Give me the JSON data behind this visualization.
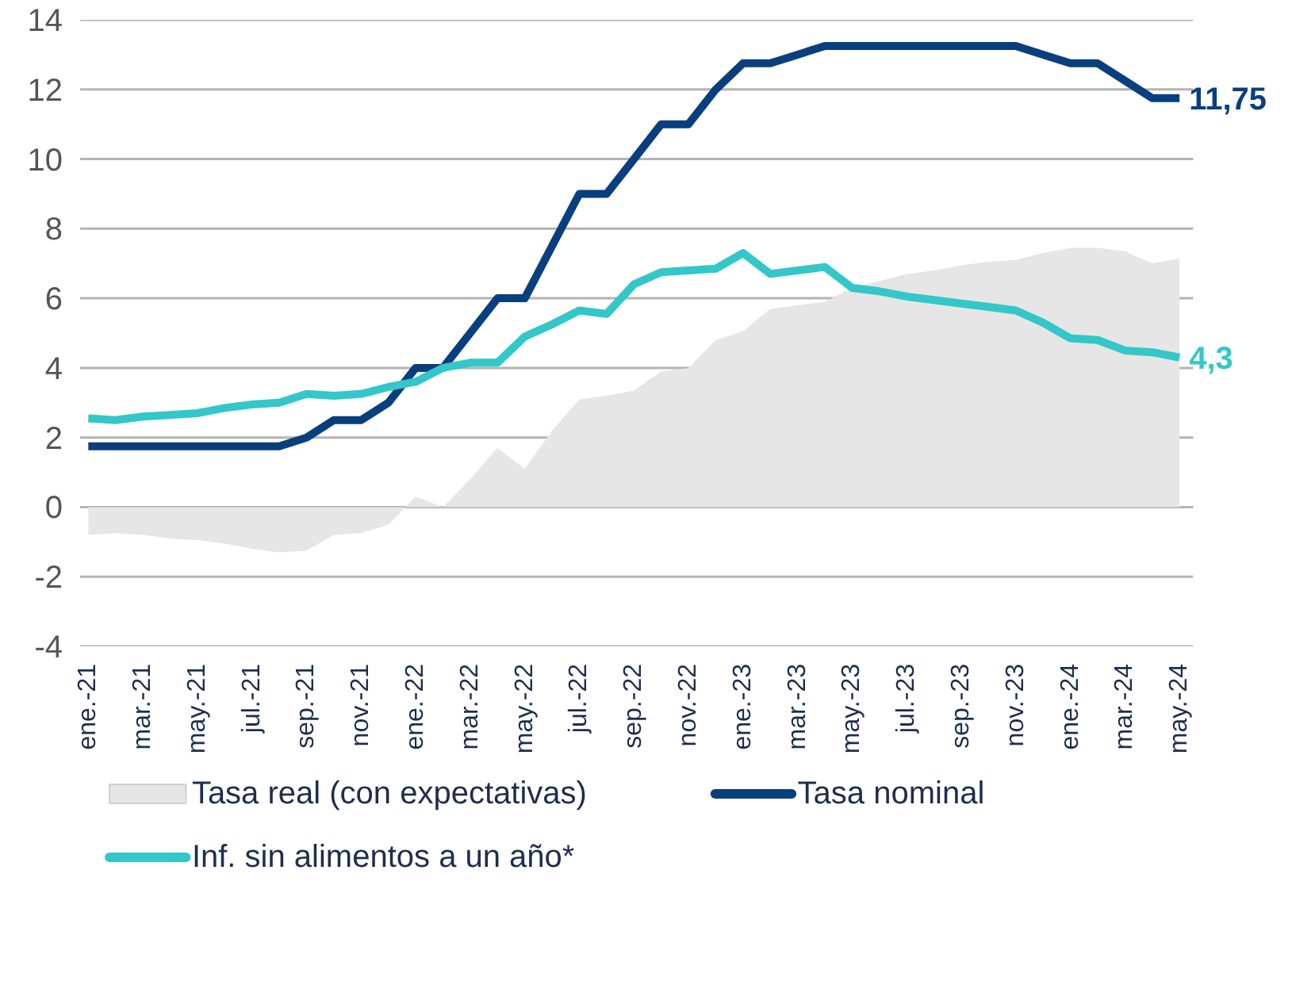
{
  "chart_data": {
    "type": "line",
    "categories": [
      "ene.-21",
      null,
      "mar.-21",
      null,
      "may.-21",
      null,
      "jul.-21",
      null,
      "sep.-21",
      null,
      "nov.-21",
      null,
      "ene.-22",
      null,
      "mar.-22",
      null,
      "may.-22",
      null,
      "jul.-22",
      null,
      "sep.-22",
      null,
      "nov.-22",
      null,
      "ene.-23",
      null,
      "mar.-23",
      null,
      "may.-23",
      null,
      "jul.-23",
      null,
      "sep.-23",
      null,
      "nov.-23",
      null,
      "ene.-24",
      null,
      "mar.-24",
      null,
      "may.-24"
    ],
    "series": [
      {
        "name": "Tasa real (con expectativas)",
        "type": "area",
        "color": "#e6e6e6",
        "values": [
          -0.8,
          -0.75,
          -0.8,
          -0.9,
          -0.95,
          -1.05,
          -1.2,
          -1.3,
          -1.25,
          -0.8,
          -0.75,
          -0.5,
          0.3,
          0.0,
          0.8,
          1.7,
          1.1,
          2.2,
          3.1,
          3.2,
          3.35,
          3.9,
          4.0,
          4.8,
          5.05,
          5.7,
          5.8,
          5.9,
          6.3,
          6.5,
          6.7,
          6.8,
          6.95,
          7.05,
          7.1,
          7.3,
          7.45,
          7.45,
          7.35,
          7.0,
          7.15
        ]
      },
      {
        "name": "Tasa nominal",
        "type": "line",
        "color": "#0a3f7e",
        "values": [
          1.75,
          1.75,
          1.75,
          1.75,
          1.75,
          1.75,
          1.75,
          1.75,
          2.0,
          2.5,
          2.5,
          3.0,
          4.0,
          4.0,
          5.0,
          6.0,
          6.0,
          7.5,
          9.0,
          9.0,
          10.0,
          11.0,
          11.0,
          12.0,
          12.75,
          12.75,
          13.0,
          13.25,
          13.25,
          13.25,
          13.25,
          13.25,
          13.25,
          13.25,
          13.25,
          13.0,
          12.75,
          12.75,
          12.25,
          11.75,
          11.75
        ]
      },
      {
        "name": "Inf. sin alimentos a un año*",
        "type": "line",
        "color": "#33c7c9",
        "values": [
          2.55,
          2.5,
          2.6,
          2.65,
          2.7,
          2.85,
          2.95,
          3.0,
          3.25,
          3.2,
          3.25,
          3.45,
          3.6,
          4.0,
          4.15,
          4.15,
          4.9,
          5.25,
          5.65,
          5.55,
          6.4,
          6.75,
          6.8,
          6.85,
          7.3,
          6.7,
          6.8,
          6.9,
          6.3,
          6.2,
          6.05,
          5.95,
          5.85,
          5.75,
          5.65,
          5.3,
          4.85,
          4.8,
          4.5,
          4.45,
          4.3
        ]
      }
    ],
    "annotations": [
      {
        "text": "11,75",
        "x": "may.-24",
        "y": 11.75
      },
      {
        "text": "4,3",
        "x": "may.-24",
        "y": 4.3
      }
    ],
    "ylim": [
      -4,
      14
    ],
    "yticks": [
      -4,
      -2,
      0,
      2,
      4,
      6,
      8,
      10,
      12,
      14
    ],
    "grid": "y",
    "legend": "bottom"
  }
}
